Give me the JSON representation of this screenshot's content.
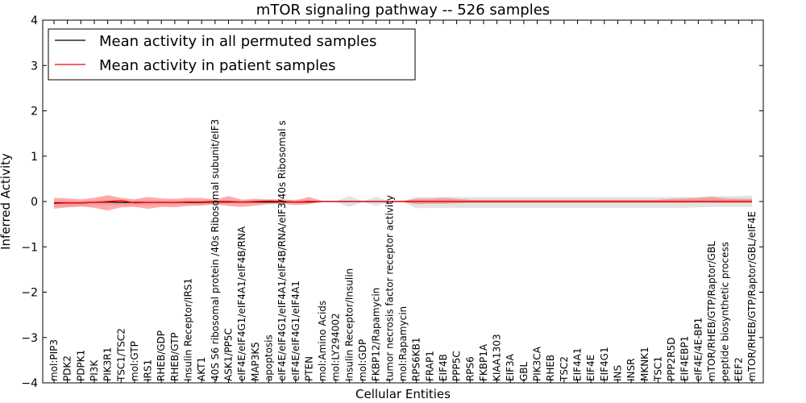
{
  "chart_data": {
    "type": "line",
    "title": "mTOR signaling pathway -- 526 samples",
    "xlabel": "Cellular Entities",
    "ylabel": "Inferred Activity",
    "ylim": [
      -4,
      4
    ],
    "yticks": [
      -4,
      -3,
      -2,
      -1,
      0,
      1,
      2,
      3,
      4
    ],
    "ytick_labels": [
      "−4",
      "−3",
      "−2",
      "−1",
      "0",
      "1",
      "2",
      "3",
      "4"
    ],
    "legend_position": "top-left",
    "colors": {
      "permuted": "#000000",
      "patient": "#ff0000",
      "permuted_band": "#cccccc",
      "patient_band": "#ff6666"
    },
    "categories": [
      "mol:PIP3",
      "PDK2",
      "PDPK1",
      "PI3K",
      "PIK3R1",
      "TSC1/TSC2",
      "mol:GTP",
      "IRS1",
      "RHEB/GDP",
      "RHEB/GTP",
      "Insulin Receptor/IRS1",
      "AKT1",
      "40S S6 ribosomal protein /40s Ribosomal subunit/eIF3",
      "ASK1/PP5C",
      "eIF4E/eIF4G1/eIF4A1/eIF4B/RNA",
      "MAP3K5",
      "apoptosis",
      "eIF4E/eIF4G1/eIF4A1/eIF4B/RNA/eIF3/40s Ribosomal s",
      "eIF4E/eIF4G1/eIF4A1",
      "PTEN",
      "mol:Amino Acids",
      "mol:LY294002",
      "Insulin Receptor/Insulin",
      "mol:GDP",
      "FKBP12/Rapamycin",
      "tumor necrosis factor receptor activity",
      "mol:Rapamycin",
      "RPS6KB1",
      "FRAP1",
      "EIF4B",
      "PPP5C",
      "RPS6",
      "FKBP1A",
      "KIAA1303",
      "EIF3A",
      "GBL",
      "PIK3CA",
      "RHEB",
      "TSC2",
      "EIF4A1",
      "EIF4E",
      "EIF4G1",
      "INS",
      "INSR",
      "MKNK1",
      "TSC1",
      "PPP2R5D",
      "EIF4EBP1",
      "eIF4E/4E-BP1",
      "mTOR/RHEB/GTP/Raptor/GBL",
      "peptide biosynthetic process",
      "EEF2",
      "mTOR/RHEB/GTP/Raptor/GBL/eIF4E"
    ],
    "series": [
      {
        "name": "Mean activity in all permuted samples",
        "color": "#000000",
        "values": [
          -0.03,
          -0.03,
          -0.03,
          -0.02,
          -0.01,
          -0.02,
          -0.02,
          -0.02,
          -0.02,
          -0.02,
          -0.02,
          -0.02,
          -0.01,
          -0.01,
          -0.01,
          -0.01,
          -0.01,
          -0.01,
          -0.01,
          -0.01,
          0,
          0,
          0,
          0,
          0,
          0,
          0,
          0,
          0,
          0,
          0,
          0,
          0,
          0,
          0,
          0,
          0,
          0,
          0,
          0,
          0,
          0,
          0,
          0,
          0,
          0,
          0,
          0,
          0,
          0,
          0,
          0,
          0
        ],
        "lower": [
          -0.12,
          -0.11,
          -0.1,
          -0.09,
          -0.08,
          -0.09,
          -0.09,
          -0.08,
          -0.08,
          -0.08,
          -0.07,
          -0.07,
          -0.06,
          -0.05,
          -0.05,
          -0.04,
          -0.04,
          -0.04,
          -0.04,
          -0.04,
          -0.01,
          -0.01,
          -0.12,
          -0.01,
          -0.1,
          -0.01,
          -0.01,
          -0.15,
          -0.14,
          -0.14,
          -0.14,
          -0.14,
          -0.14,
          -0.14,
          -0.14,
          -0.14,
          -0.14,
          -0.14,
          -0.14,
          -0.14,
          -0.14,
          -0.14,
          -0.14,
          -0.14,
          -0.14,
          -0.14,
          -0.14,
          -0.14,
          -0.13,
          -0.12,
          -0.12,
          -0.12,
          -0.12
        ],
        "upper": [
          0.02,
          0.02,
          0.02,
          0.03,
          0.03,
          0.03,
          0.03,
          0.03,
          0.03,
          0.03,
          0.03,
          0.03,
          0.03,
          0.03,
          0.03,
          0.03,
          0.03,
          0.03,
          0.03,
          0.03,
          0.01,
          0.01,
          0.12,
          0.01,
          0.1,
          0.01,
          0.01,
          0.1,
          0.1,
          0.1,
          0.1,
          0.1,
          0.1,
          0.1,
          0.1,
          0.1,
          0.1,
          0.1,
          0.1,
          0.1,
          0.1,
          0.1,
          0.1,
          0.1,
          0.1,
          0.1,
          0.1,
          0.1,
          0.1,
          0.12,
          0.12,
          0.12,
          0.13
        ]
      },
      {
        "name": "Mean activity in patient samples",
        "color": "#ff0000",
        "values": [
          -0.04,
          -0.03,
          -0.03,
          -0.02,
          0,
          0.02,
          -0.03,
          -0.02,
          -0.02,
          -0.02,
          -0.01,
          -0.01,
          0,
          0,
          -0.01,
          0,
          0.01,
          0,
          -0.01,
          0,
          0,
          0,
          0,
          0,
          0,
          0,
          0,
          0,
          0,
          0,
          0,
          0,
          0,
          0,
          0,
          0,
          0,
          0,
          0,
          0,
          0,
          0,
          0,
          0,
          0,
          0,
          0,
          0,
          0,
          0,
          0,
          0,
          0
        ],
        "lower": [
          -0.16,
          -0.13,
          -0.11,
          -0.14,
          -0.2,
          -0.13,
          -0.12,
          -0.16,
          -0.12,
          -0.13,
          -0.1,
          -0.09,
          -0.06,
          -0.1,
          -0.12,
          -0.09,
          -0.06,
          -0.05,
          -0.08,
          -0.06,
          -0.01,
          -0.01,
          -0.01,
          -0.01,
          -0.01,
          -0.01,
          -0.01,
          -0.06,
          -0.05,
          -0.05,
          -0.04,
          -0.03,
          -0.03,
          -0.03,
          -0.03,
          -0.03,
          -0.03,
          -0.03,
          -0.03,
          -0.03,
          -0.03,
          -0.03,
          -0.03,
          -0.03,
          -0.03,
          -0.03,
          -0.03,
          -0.03,
          -0.03,
          -0.03,
          -0.03,
          -0.03,
          -0.03
        ],
        "upper": [
          0.08,
          0.07,
          0.05,
          0.08,
          0.14,
          0.08,
          0.05,
          0.1,
          0.07,
          0.06,
          0.08,
          0.08,
          0.04,
          0.12,
          0.04,
          0.06,
          0.05,
          0.05,
          0.03,
          0.1,
          0.01,
          0.01,
          0.01,
          0.01,
          0.01,
          0.01,
          0.01,
          0.06,
          0.06,
          0.08,
          0.06,
          0.04,
          0.04,
          0.04,
          0.04,
          0.04,
          0.04,
          0.04,
          0.04,
          0.04,
          0.04,
          0.04,
          0.04,
          0.04,
          0.04,
          0.04,
          0.06,
          0.07,
          0.08,
          0.1,
          0.07,
          0.06,
          0.06
        ]
      }
    ]
  }
}
